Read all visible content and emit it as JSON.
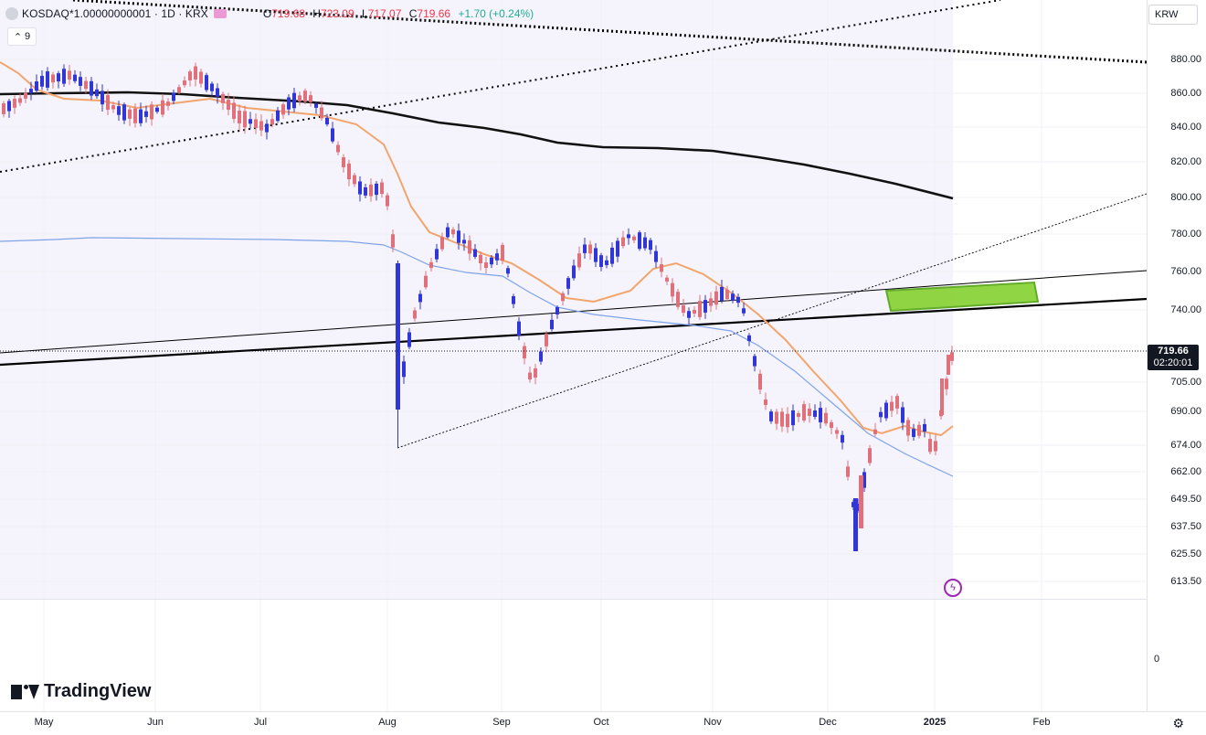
{
  "header": {
    "symbol": "KOSDAQ*1.00000000001 · 1D · KRX",
    "indicator_count": "9",
    "ohlc": {
      "o_label": "O",
      "o": "719.68",
      "h_label": "H",
      "h": "723.09",
      "l_label": "L",
      "l": "717.07",
      "c_label": "C",
      "c": "719.66",
      "change": "+1.70 (+0.24%)"
    }
  },
  "currency": "KRW",
  "last_price": {
    "price": "719.66",
    "countdown": "02:20:01"
  },
  "price_axis": [
    "880.00",
    "860.00",
    "840.00",
    "820.00",
    "800.00",
    "780.00",
    "760.00",
    "740.00",
    "705.00",
    "690.00",
    "674.00",
    "662.00",
    "649.50",
    "637.50",
    "625.50",
    "613.50"
  ],
  "volume_zero": "0",
  "time_axis": [
    "May",
    "Jun",
    "Jul",
    "Aug",
    "Sep",
    "Oct",
    "Nov",
    "Dec",
    "2025",
    "Feb"
  ],
  "brand": "TradingView",
  "colors": {
    "up": "#e0707a",
    "down": "#3136d6",
    "ma_fast": "#f2a56b",
    "ma_mid": "#7ea4e8",
    "ma_slow": "#000000",
    "highlight": "#7ed321"
  },
  "icons": [
    "settings-icon",
    "flash-icon"
  ],
  "chart_data": {
    "type": "candlestick",
    "title": "KOSDAQ*1.00000000001 · 1D · KRX",
    "ylim": [
      613.5,
      880
    ],
    "last": 719.66
  }
}
